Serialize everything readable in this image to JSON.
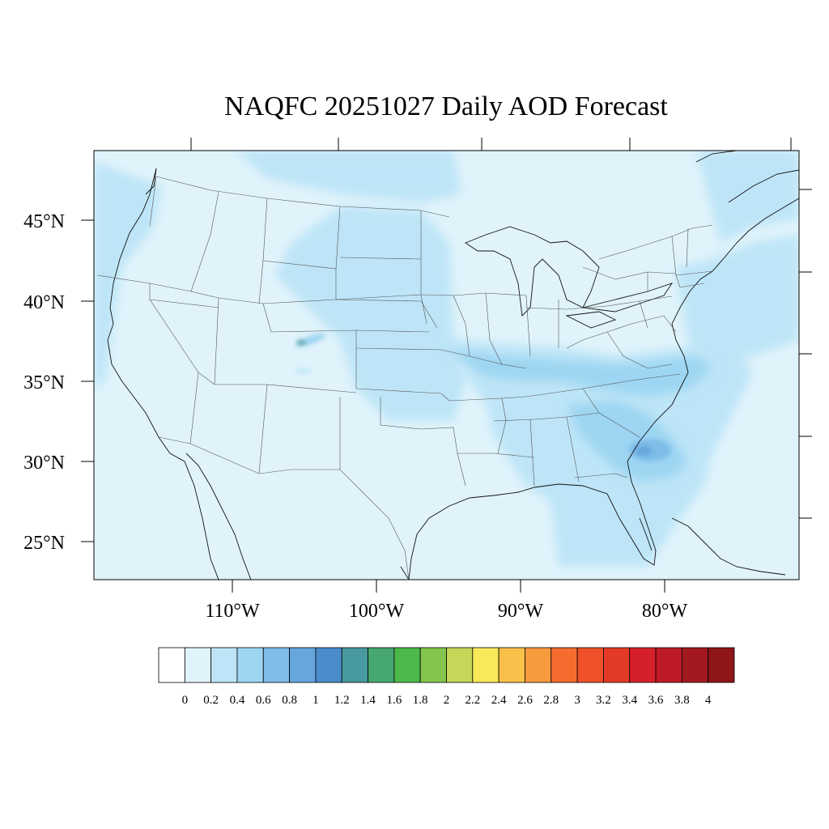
{
  "title": "NAQFC 20251027 Daily AOD Forecast",
  "chart_data": {
    "type": "heatmap",
    "title": "NAQFC 20251027 Daily AOD Forecast",
    "lat_ticks": [
      {
        "value": 45,
        "label": "45°N"
      },
      {
        "value": 40,
        "label": "40°N"
      },
      {
        "value": 35,
        "label": "35°N"
      },
      {
        "value": 30,
        "label": "30°N"
      },
      {
        "value": 25,
        "label": "25°N"
      }
    ],
    "lon_ticks": [
      {
        "value": -110,
        "label": "110°W"
      },
      {
        "value": -100,
        "label": "100°W"
      },
      {
        "value": -90,
        "label": "90°W"
      },
      {
        "value": -80,
        "label": "80°W"
      }
    ],
    "colorbar": {
      "levels": [
        "0",
        "0.2",
        "0.4",
        "0.6",
        "0.8",
        "1",
        "1.2",
        "1.4",
        "1.6",
        "1.8",
        "2",
        "2.2",
        "2.4",
        "2.6",
        "2.8",
        "3",
        "3.2",
        "3.4",
        "3.6",
        "3.8",
        "4"
      ],
      "colors": [
        "#ffffff",
        "#e0f3fb",
        "#bde5f7",
        "#9dd5f2",
        "#7fbde8",
        "#65a6dc",
        "#4a8ccc",
        "#479a9f",
        "#46a771",
        "#4cb84a",
        "#84c54d",
        "#c5d659",
        "#f8e85a",
        "#f9c14a",
        "#f89a3e",
        "#f56c2e",
        "#ef512b",
        "#e43a28",
        "#d62029",
        "#bc1a25",
        "#a31920",
        "#8e1518"
      ]
    },
    "regions": [
      {
        "name": "background",
        "aod": "0-0.2"
      },
      {
        "name": "northern plains / upper midwest band",
        "aod": "0.2-0.4"
      },
      {
        "name": "central us / ohio valley",
        "aod": "0.4-0.6"
      },
      {
        "name": "southeast us / georgia-florida",
        "aod": "0.6-0.8"
      },
      {
        "name": "southern colorado hotspot",
        "aod": "1.2-1.4"
      }
    ]
  }
}
